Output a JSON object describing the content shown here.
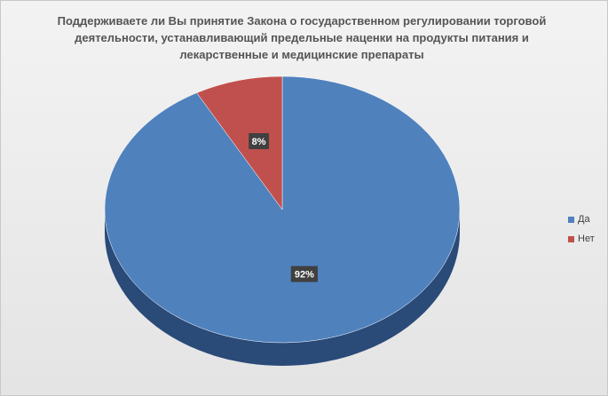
{
  "chart_data": {
    "type": "pie",
    "title": "Поддерживаете ли Вы принятие Закона  о государственном регулировании торговой деятельности, устанавливающий предельные наценки на  продукты питания и лекарственные и медицинские препараты",
    "categories": [
      "Да",
      "Нет"
    ],
    "values": [
      92,
      8
    ],
    "labels": [
      "92%",
      "8%"
    ],
    "colors": [
      "#4f81bd",
      "#c0504d"
    ],
    "legend": "right",
    "style": "3d"
  }
}
